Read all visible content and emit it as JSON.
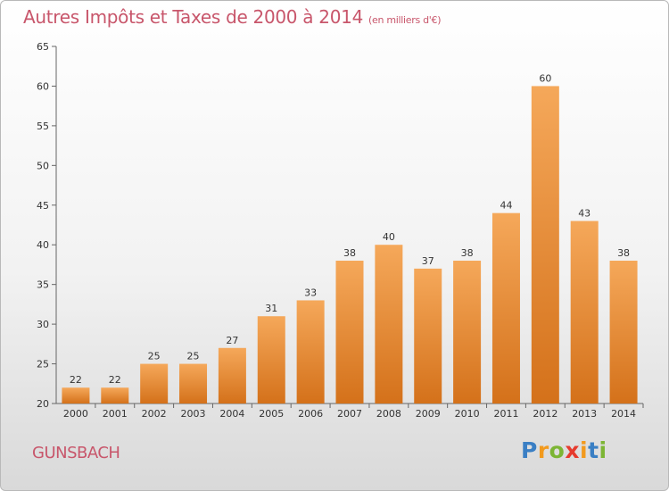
{
  "title": "Autres Impôts et Taxes de 2000 à 2014",
  "title_unit": "(en milliers d'€)",
  "place": "GUNSBACH",
  "logo": {
    "text": "Proxiti",
    "letters": [
      "P",
      "r",
      "o",
      "x",
      "i",
      "t",
      "i"
    ],
    "colors": [
      "#3a7fc4",
      "#f29a1e",
      "#7cb534",
      "#e63b2e",
      "#f29a1e",
      "#3a7fc4",
      "#7cb534"
    ]
  },
  "colors": {
    "bar_top": "#f5a85a",
    "bar_bottom": "#d4711a",
    "title": "#c8566b"
  },
  "chart_data": {
    "type": "bar",
    "categories": [
      "2000",
      "2001",
      "2002",
      "2003",
      "2004",
      "2005",
      "2006",
      "2007",
      "2008",
      "2009",
      "2010",
      "2011",
      "2012",
      "2013",
      "2014"
    ],
    "values": [
      22,
      22,
      25,
      25,
      27,
      31,
      33,
      38,
      40,
      37,
      38,
      44,
      60,
      43,
      38
    ],
    "ylim": [
      20,
      65
    ],
    "yticks": [
      20,
      25,
      30,
      35,
      40,
      45,
      50,
      55,
      60,
      65
    ],
    "grid": false
  }
}
